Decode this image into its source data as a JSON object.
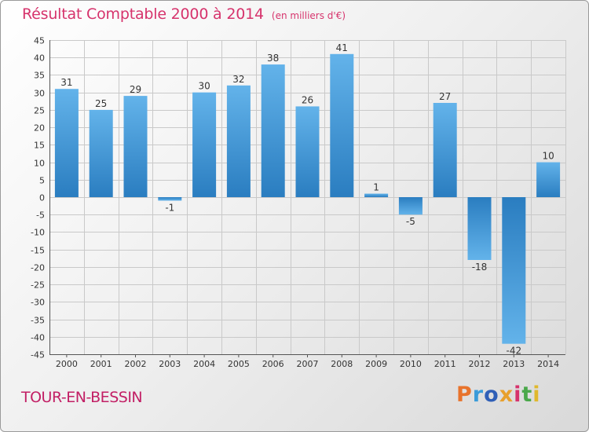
{
  "header": {
    "title": "Résultat Comptable 2000 à 2014",
    "unit": "(en milliers d'€)"
  },
  "footer": {
    "commune": "TOUR-EN-BESSIN",
    "logo": {
      "text": "Proxiti",
      "letter_colors": [
        "#e8732c",
        "#3a9bd9",
        "#2f5fb7",
        "#e8a02c",
        "#d6336c",
        "#4aa84a",
        "#e0b82c"
      ]
    }
  },
  "colors": {
    "bar_light": "#63b3ea",
    "bar_dark": "#2a7dc0",
    "grid": "#c9c9c9",
    "text": "#333333",
    "title": "#d6336c"
  },
  "chart_data": {
    "type": "bar",
    "categories": [
      "2000",
      "2001",
      "2002",
      "2003",
      "2004",
      "2005",
      "2006",
      "2007",
      "2008",
      "2009",
      "2010",
      "2011",
      "2012",
      "2013",
      "2014"
    ],
    "values": [
      31,
      25,
      29,
      -1,
      30,
      32,
      38,
      26,
      41,
      1,
      -5,
      27,
      -18,
      -42,
      10
    ],
    "labels": [
      "31",
      "25",
      "29",
      "-1",
      "30",
      "32",
      "38",
      "26",
      "41",
      "1",
      "-5",
      "27",
      "-18",
      "-42",
      "10"
    ],
    "ylim": [
      -45,
      45
    ],
    "yticks": [
      45,
      40,
      35,
      30,
      25,
      20,
      15,
      10,
      5,
      0,
      -5,
      -10,
      -15,
      -20,
      -25,
      -30,
      -35,
      -40,
      -45
    ],
    "grid": true
  }
}
